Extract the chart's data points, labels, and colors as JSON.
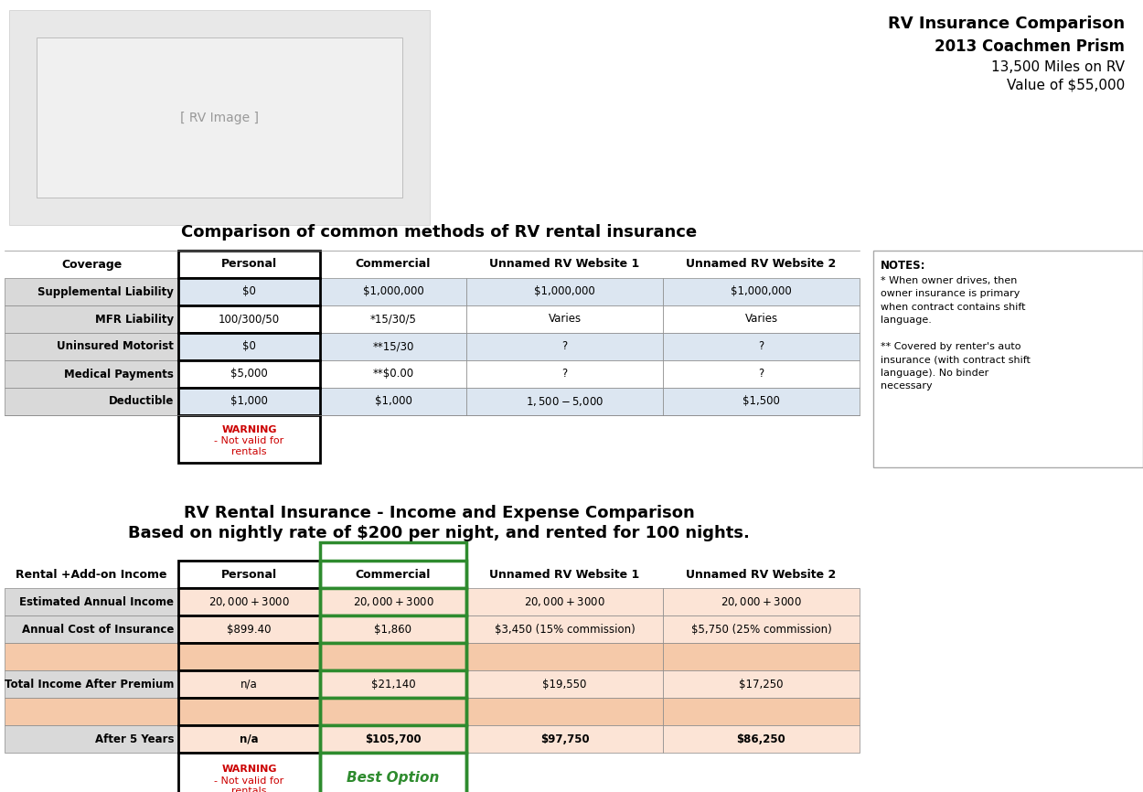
{
  "title1": "RV Insurance Comparison",
  "title2": "2013 Coachmen Prism",
  "title3": "13,500 Miles on RV",
  "title4": "Value of $55,000",
  "section1_title": "Comparison of common methods of RV rental insurance",
  "section2_title_line1": "RV Rental Insurance - Income and Expense Comparison",
  "section2_title_line2": "Based on nightly rate of $200 per night, and rented for 100 nights.",
  "table1_headers": [
    "Coverage",
    "Personal",
    "Commercial",
    "Unnamed RV Website 1",
    "Unnamed RV Website 2"
  ],
  "table1_rows": [
    [
      "Supplemental Liability",
      "$0",
      "$1,000,000",
      "$1,000,000",
      "$1,000,000"
    ],
    [
      "MFR Liability",
      "100/300/50",
      "*15/30/5",
      "Varies",
      "Varies"
    ],
    [
      "Uninsured Motorist",
      "$0",
      "**15/30",
      "?",
      "?"
    ],
    [
      "Medical Payments",
      "$5,000",
      "**$0.00",
      "?",
      "?"
    ],
    [
      "Deductible",
      "$1,000",
      "$1,000",
      "$1,500 - $5,000",
      "$1,500"
    ]
  ],
  "table2_headers": [
    "Rental +Add-on Income",
    "Personal",
    "Commercial",
    "Unnamed RV Website 1",
    "Unnamed RV Website 2"
  ],
  "table2_rows": [
    [
      "Estimated Annual Income",
      "$20,000 + $3000",
      "$20,000 + $3000",
      "$20,000 + $3000",
      "$20,000 + $3000"
    ],
    [
      "Annual Cost of Insurance",
      "$899.40",
      "$1,860",
      "$3,450 (15% commission)",
      "$5,750 (25% commission)"
    ],
    [
      "",
      "",
      "",
      "",
      ""
    ],
    [
      "Total Income After Premium",
      "n/a",
      "$21,140",
      "$19,550",
      "$17,250"
    ],
    [
      "",
      "",
      "",
      "",
      ""
    ],
    [
      "After 5 Years",
      "n/a",
      "$105,700",
      "$97,750",
      "$86,250"
    ]
  ],
  "notes_content": "* When owner drives, then\nowner insurance is primary\nwhen contract contains shift\nlanguage.\n\n** Covered by renter's auto\ninsurance (with contract shift\nlanguage). No binder\nnecessary",
  "bg_color": "#ffffff",
  "row_blue": "#dce6f1",
  "row_orange": "#fce4d6",
  "row_orange_empty": "#f5c9a9",
  "col_gray": "#d9d9d9",
  "personal_border": "#000000",
  "commercial_border": "#2e8b2e",
  "warning_color": "#cc0000",
  "best_color": "#2e8b2e"
}
